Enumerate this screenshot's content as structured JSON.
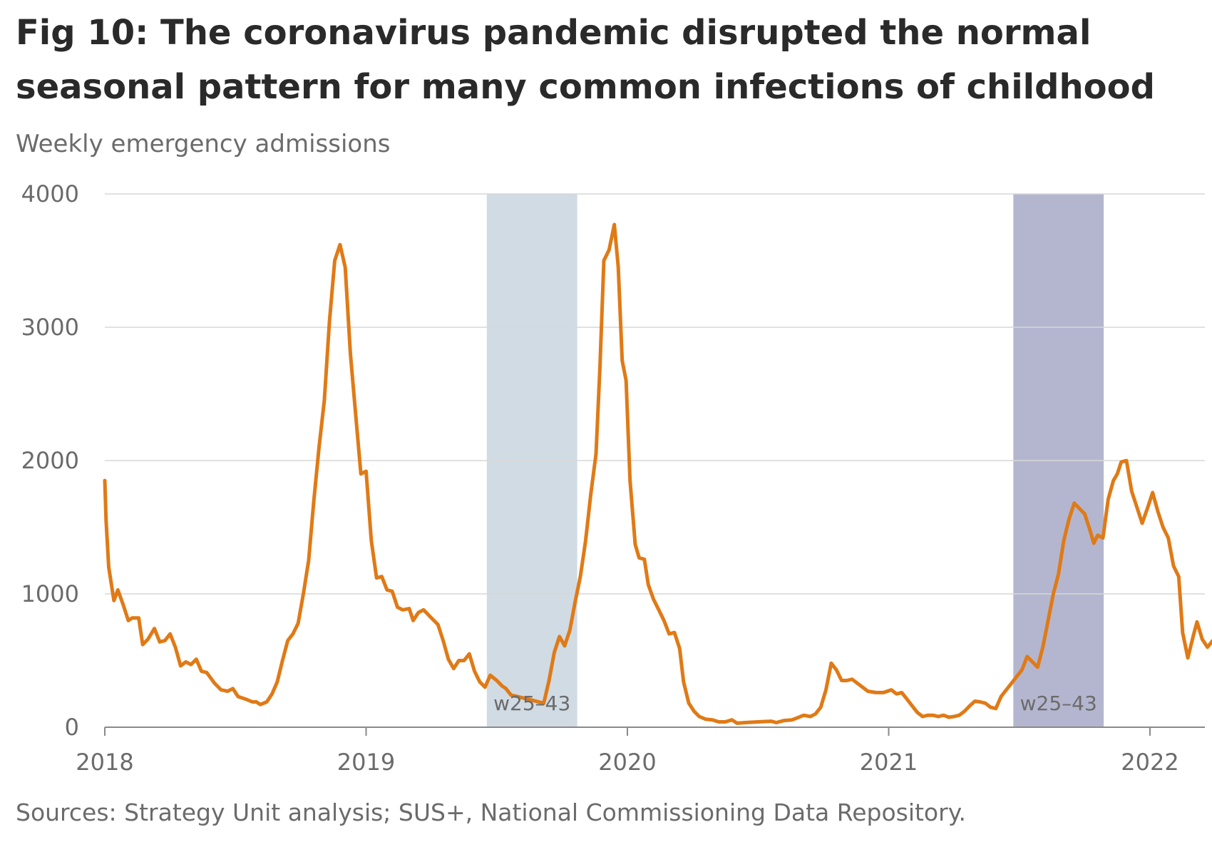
{
  "title": "Fig 10: The coronavirus pandemic disrupted the normal seasonal pattern for many common infections of childhood",
  "subtitle": "Weekly emergency admissions",
  "source": "Sources: Strategy Unit analysis; SUS+, National Commissioning Data Repository.",
  "colors": {
    "line": "#e07a16",
    "band1": "#d0dbe4",
    "band2": "#b4b6cf",
    "grid": "#d7d7d7",
    "axis": "#8a8a8a"
  },
  "chart_data": {
    "type": "line",
    "title": "Fig 10: The coronavirus pandemic disrupted the normal seasonal pattern for many common infections of childhood",
    "ylabel": "Weekly emergency admissions",
    "xlabel": "",
    "ylim": [
      0,
      4000
    ],
    "xlim": [
      2018.0,
      2022.22
    ],
    "yticks": [
      0,
      1000,
      2000,
      3000,
      4000
    ],
    "xticks": [
      2018,
      2019,
      2020,
      2021,
      2022
    ],
    "grid": "horizontal",
    "bands": [
      {
        "label": "w25–43",
        "start": 2019.462,
        "end": 2019.808
      },
      {
        "label": "w25–43",
        "start": 2021.477,
        "end": 2021.823
      }
    ],
    "series": [
      {
        "points": [
          [
            2018.0,
            1850
          ],
          [
            2018.005,
            1550
          ],
          [
            2018.015,
            1200
          ],
          [
            2018.035,
            950
          ],
          [
            2018.05,
            1030
          ],
          [
            2018.07,
            920
          ],
          [
            2018.09,
            800
          ],
          [
            2018.105,
            820
          ],
          [
            2018.13,
            820
          ],
          [
            2018.145,
            620
          ],
          [
            2018.165,
            660
          ],
          [
            2018.19,
            740
          ],
          [
            2018.21,
            640
          ],
          [
            2018.23,
            650
          ],
          [
            2018.25,
            700
          ],
          [
            2018.27,
            600
          ],
          [
            2018.29,
            460
          ],
          [
            2018.31,
            490
          ],
          [
            2018.33,
            470
          ],
          [
            2018.35,
            510
          ],
          [
            2018.37,
            420
          ],
          [
            2018.39,
            410
          ],
          [
            2018.42,
            330
          ],
          [
            2018.445,
            280
          ],
          [
            2018.47,
            270
          ],
          [
            2018.49,
            290
          ],
          [
            2018.51,
            230
          ],
          [
            2018.54,
            210
          ],
          [
            2018.565,
            190
          ],
          [
            2018.58,
            190
          ],
          [
            2018.595,
            170
          ],
          [
            2018.62,
            190
          ],
          [
            2018.64,
            250
          ],
          [
            2018.66,
            340
          ],
          [
            2018.68,
            500
          ],
          [
            2018.7,
            650
          ],
          [
            2018.72,
            700
          ],
          [
            2018.74,
            780
          ],
          [
            2018.76,
            1000
          ],
          [
            2018.78,
            1250
          ],
          [
            2018.8,
            1700
          ],
          [
            2018.82,
            2100
          ],
          [
            2018.84,
            2450
          ],
          [
            2018.86,
            3050
          ],
          [
            2018.88,
            3500
          ],
          [
            2018.9,
            3620
          ],
          [
            2018.92,
            3450
          ],
          [
            2018.94,
            2800
          ],
          [
            2018.96,
            2350
          ],
          [
            2018.98,
            1900
          ],
          [
            2019.0,
            1920
          ],
          [
            2019.02,
            1400
          ],
          [
            2019.04,
            1120
          ],
          [
            2019.06,
            1130
          ],
          [
            2019.08,
            1030
          ],
          [
            2019.1,
            1020
          ],
          [
            2019.12,
            900
          ],
          [
            2019.14,
            880
          ],
          [
            2019.165,
            890
          ],
          [
            2019.18,
            800
          ],
          [
            2019.2,
            860
          ],
          [
            2019.22,
            880
          ],
          [
            2019.25,
            820
          ],
          [
            2019.275,
            770
          ],
          [
            2019.295,
            650
          ],
          [
            2019.315,
            510
          ],
          [
            2019.335,
            440
          ],
          [
            2019.355,
            500
          ],
          [
            2019.375,
            500
          ],
          [
            2019.395,
            550
          ],
          [
            2019.415,
            420
          ],
          [
            2019.435,
            340
          ],
          [
            2019.455,
            300
          ],
          [
            2019.475,
            390
          ],
          [
            2019.5,
            350
          ],
          [
            2019.52,
            310
          ],
          [
            2019.535,
            290
          ],
          [
            2019.555,
            240
          ],
          [
            2019.58,
            230
          ],
          [
            2019.6,
            220
          ],
          [
            2019.62,
            210
          ],
          [
            2019.64,
            200
          ],
          [
            2019.66,
            190
          ],
          [
            2019.68,
            180
          ],
          [
            2019.7,
            350
          ],
          [
            2019.72,
            560
          ],
          [
            2019.74,
            680
          ],
          [
            2019.76,
            610
          ],
          [
            2019.78,
            730
          ],
          [
            2019.8,
            940
          ],
          [
            2019.82,
            1130
          ],
          [
            2019.84,
            1400
          ],
          [
            2019.86,
            1750
          ],
          [
            2019.88,
            2050
          ],
          [
            2019.895,
            2700
          ],
          [
            2019.91,
            3500
          ],
          [
            2019.93,
            3580
          ],
          [
            2019.95,
            3770
          ],
          [
            2019.965,
            3450
          ],
          [
            2019.98,
            2750
          ],
          [
            2019.995,
            2600
          ],
          [
            2020.01,
            1850
          ],
          [
            2020.03,
            1370
          ],
          [
            2020.045,
            1270
          ],
          [
            2020.065,
            1260
          ],
          [
            2020.08,
            1070
          ],
          [
            2020.1,
            960
          ],
          [
            2020.12,
            880
          ],
          [
            2020.14,
            800
          ],
          [
            2020.16,
            700
          ],
          [
            2020.18,
            710
          ],
          [
            2020.2,
            590
          ],
          [
            2020.215,
            340
          ],
          [
            2020.235,
            180
          ],
          [
            2020.255,
            120
          ],
          [
            2020.275,
            80
          ],
          [
            2020.3,
            60
          ],
          [
            2020.325,
            55
          ],
          [
            2020.35,
            40
          ],
          [
            2020.375,
            40
          ],
          [
            2020.4,
            55
          ],
          [
            2020.42,
            30
          ],
          [
            2020.45,
            35
          ],
          [
            2020.5,
            40
          ],
          [
            2020.55,
            45
          ],
          [
            2020.57,
            35
          ],
          [
            2020.6,
            50
          ],
          [
            2020.63,
            55
          ],
          [
            2020.65,
            70
          ],
          [
            2020.675,
            90
          ],
          [
            2020.7,
            80
          ],
          [
            2020.72,
            100
          ],
          [
            2020.74,
            150
          ],
          [
            2020.76,
            280
          ],
          [
            2020.78,
            480
          ],
          [
            2020.8,
            430
          ],
          [
            2020.82,
            350
          ],
          [
            2020.84,
            350
          ],
          [
            2020.86,
            360
          ],
          [
            2020.88,
            330
          ],
          [
            2020.9,
            300
          ],
          [
            2020.92,
            270
          ],
          [
            2020.95,
            260
          ],
          [
            2020.98,
            260
          ],
          [
            2021.01,
            280
          ],
          [
            2021.03,
            250
          ],
          [
            2021.05,
            260
          ],
          [
            2021.07,
            210
          ],
          [
            2021.09,
            160
          ],
          [
            2021.11,
            110
          ],
          [
            2021.13,
            80
          ],
          [
            2021.15,
            90
          ],
          [
            2021.17,
            90
          ],
          [
            2021.19,
            80
          ],
          [
            2021.21,
            90
          ],
          [
            2021.23,
            75
          ],
          [
            2021.25,
            80
          ],
          [
            2021.27,
            90
          ],
          [
            2021.29,
            120
          ],
          [
            2021.31,
            160
          ],
          [
            2021.33,
            195
          ],
          [
            2021.35,
            190
          ],
          [
            2021.37,
            180
          ],
          [
            2021.39,
            150
          ],
          [
            2021.41,
            140
          ],
          [
            2021.43,
            230
          ],
          [
            2021.45,
            280
          ],
          [
            2021.47,
            330
          ],
          [
            2021.49,
            380
          ],
          [
            2021.51,
            430
          ],
          [
            2021.53,
            530
          ],
          [
            2021.55,
            490
          ],
          [
            2021.57,
            450
          ],
          [
            2021.59,
            600
          ],
          [
            2021.61,
            800
          ],
          [
            2021.63,
            1000
          ],
          [
            2021.65,
            1150
          ],
          [
            2021.67,
            1400
          ],
          [
            2021.69,
            1560
          ],
          [
            2021.71,
            1680
          ],
          [
            2021.73,
            1640
          ],
          [
            2021.75,
            1600
          ],
          [
            2021.77,
            1480
          ],
          [
            2021.785,
            1380
          ],
          [
            2021.8,
            1440
          ],
          [
            2021.82,
            1420
          ],
          [
            2021.84,
            1710
          ],
          [
            2021.86,
            1850
          ],
          [
            2021.875,
            1900
          ],
          [
            2021.89,
            1990
          ],
          [
            2021.91,
            2000
          ],
          [
            2021.93,
            1770
          ],
          [
            2021.95,
            1650
          ],
          [
            2021.97,
            1530
          ],
          [
            2021.99,
            1640
          ],
          [
            2022.01,
            1760
          ],
          [
            2022.03,
            1620
          ],
          [
            2022.05,
            1500
          ],
          [
            2022.07,
            1420
          ],
          [
            2022.09,
            1210
          ],
          [
            2022.11,
            1130
          ],
          [
            2022.125,
            710
          ],
          [
            2022.145,
            520
          ],
          [
            2022.165,
            680
          ],
          [
            2022.18,
            790
          ],
          [
            2022.2,
            660
          ],
          [
            2022.22,
            600
          ],
          [
            2022.24,
            650
          ],
          [
            2022.26,
            590
          ],
          [
            2022.275,
            570
          ],
          [
            2022.295,
            600
          ],
          [
            2022.315,
            640
          ],
          [
            2022.33,
            630
          ]
        ]
      }
    ]
  }
}
